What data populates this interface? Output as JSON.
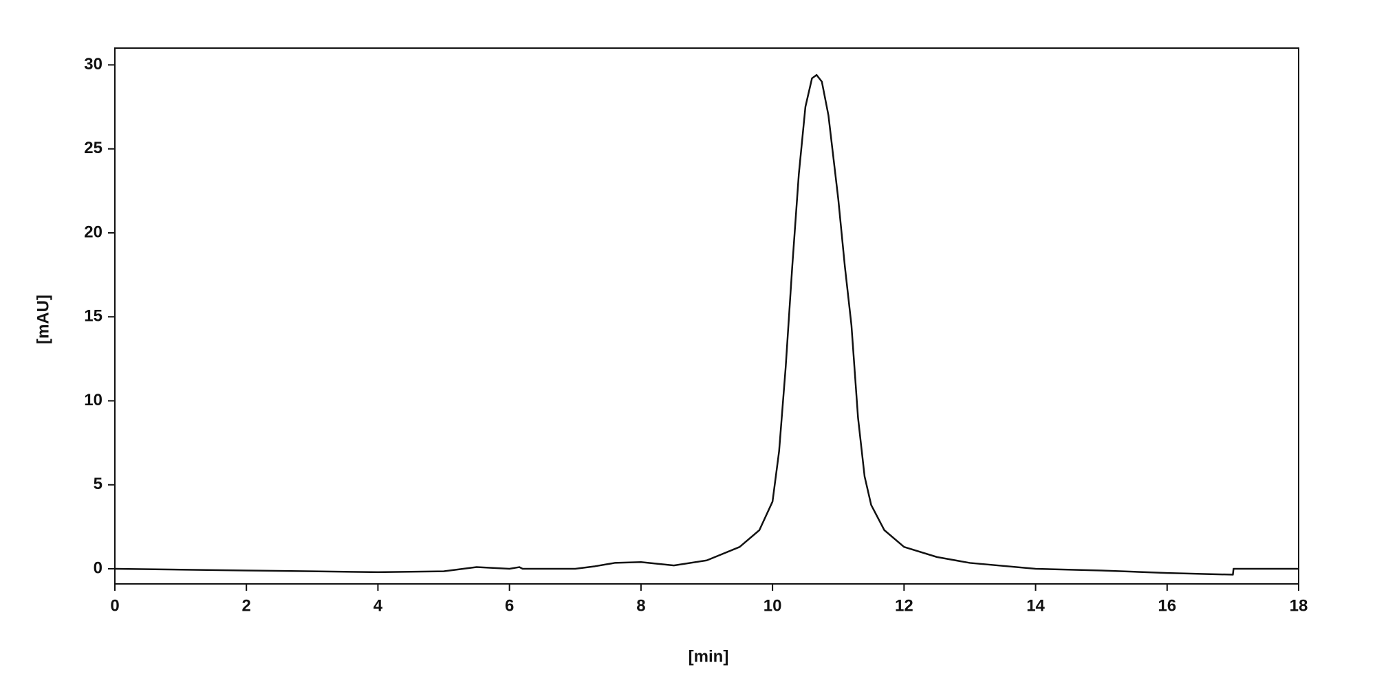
{
  "chart_data": {
    "type": "line",
    "x_label": "[min]",
    "y_label": "[mAU]",
    "xlim": [
      0,
      18
    ],
    "xticks": [
      0,
      2,
      4,
      6,
      8,
      10,
      12,
      14,
      16,
      18
    ],
    "ylim": [
      -0.9,
      31
    ],
    "yticks": [
      0,
      5,
      10,
      15,
      20,
      25,
      30
    ],
    "grid": false,
    "series": [
      {
        "color": "#111111",
        "x": [
          0,
          1,
          2,
          3,
          4,
          5,
          5.5,
          6,
          6.15,
          6.2,
          7,
          7.3,
          7.6,
          8,
          8.5,
          9,
          9.5,
          9.8,
          10,
          10.1,
          10.2,
          10.3,
          10.4,
          10.5,
          10.6,
          10.67,
          10.75,
          10.85,
          11,
          11.1,
          11.2,
          11.3,
          11.4,
          11.5,
          11.7,
          12,
          12.5,
          13,
          14,
          15,
          16,
          17,
          17.01,
          18
        ],
        "values": [
          0,
          -0.05,
          -0.1,
          -0.15,
          -0.2,
          -0.15,
          0.1,
          0,
          0.1,
          0,
          0,
          0.15,
          0.35,
          0.4,
          0.2,
          0.5,
          1.3,
          2.3,
          4,
          7,
          12,
          18,
          23.5,
          27.5,
          29.2,
          29.4,
          29,
          27,
          22,
          18,
          14.5,
          9,
          5.5,
          3.8,
          2.3,
          1.3,
          0.7,
          0.35,
          0,
          -0.1,
          -0.25,
          -0.35,
          0,
          0
        ]
      }
    ]
  }
}
